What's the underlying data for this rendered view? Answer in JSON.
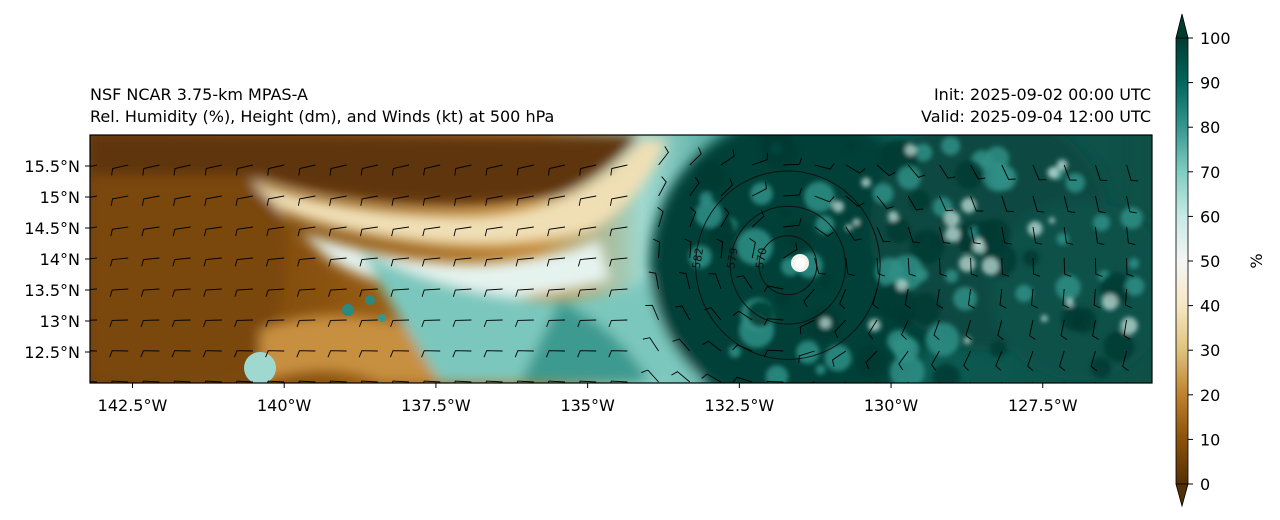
{
  "title": {
    "model": "NSF NCAR 3.75-km MPAS-A",
    "fields": "Rel. Humidity (%), Height (dm), and Winds (kt) at 500 hPa",
    "init": "Init: 2025-09-02 00:00 UTC",
    "valid": "Valid: 2025-09-04 12:00 UTC"
  },
  "map": {
    "lon_range": [
      -143.2,
      -125.7
    ],
    "lat_range": [
      12.0,
      16.0
    ],
    "lat_ticks": [
      {
        "value": 15.5,
        "label": "15.5°N"
      },
      {
        "value": 15.0,
        "label": "15°N"
      },
      {
        "value": 14.5,
        "label": "14.5°N"
      },
      {
        "value": 14.0,
        "label": "14°N"
      },
      {
        "value": 13.5,
        "label": "13.5°N"
      },
      {
        "value": 13.0,
        "label": "13°N"
      },
      {
        "value": 12.5,
        "label": "12.5°N"
      }
    ],
    "lon_ticks": [
      {
        "value": -142.5,
        "label": "142.5°W"
      },
      {
        "value": -140.0,
        "label": "140°W"
      },
      {
        "value": -137.5,
        "label": "137.5°W"
      },
      {
        "value": -135.0,
        "label": "135°W"
      },
      {
        "value": -132.5,
        "label": "132.5°W"
      },
      {
        "value": -130.0,
        "label": "130°W"
      },
      {
        "value": -127.5,
        "label": "127.5°W"
      }
    ],
    "cyclone_center": {
      "lon": -131.7,
      "lat": 13.9
    },
    "height_contours": [
      {
        "label": "570",
        "radius_deg": 0.5
      },
      {
        "label": "579",
        "radius_deg": 1.0
      },
      {
        "label": "582",
        "radius_deg": 1.6
      }
    ]
  },
  "colorbar": {
    "unit": "%",
    "range": [
      0,
      100
    ],
    "ticks": [
      "0",
      "10",
      "20",
      "30",
      "40",
      "50",
      "60",
      "70",
      "80",
      "90",
      "100"
    ],
    "colors": [
      "#543005",
      "#8c510a",
      "#bf812d",
      "#dfc27d",
      "#f6e8c3",
      "#f5f5f5",
      "#c7eae5",
      "#80cdc1",
      "#35978f",
      "#01665e",
      "#003c30"
    ]
  }
}
